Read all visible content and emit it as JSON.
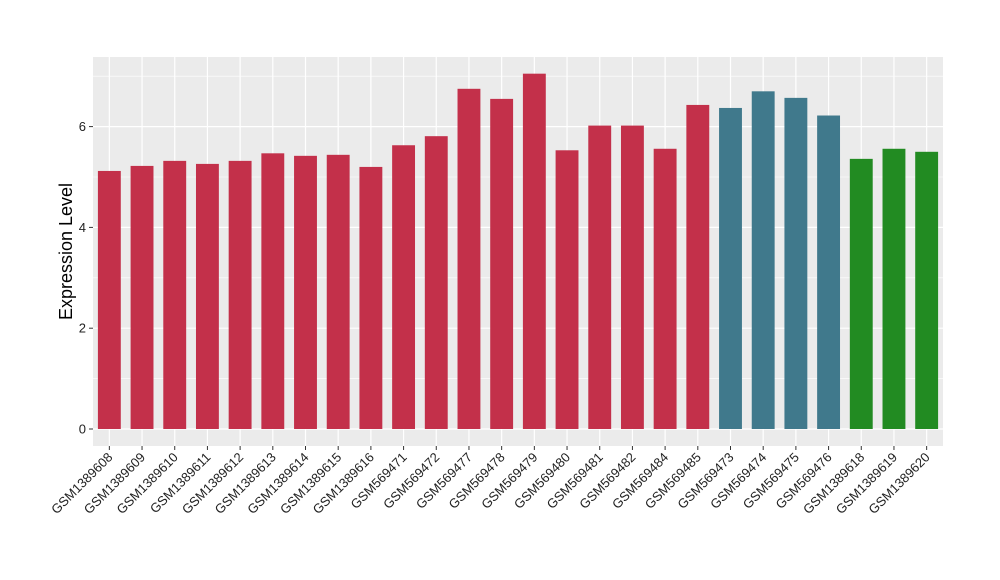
{
  "chart_data": {
    "type": "bar",
    "title": "",
    "xlabel": "",
    "ylabel": "Expression Level",
    "ylim": [
      0,
      7.3
    ],
    "yticks": [
      0,
      2,
      4,
      6
    ],
    "grid": true,
    "categories": [
      "GSM1389608",
      "GSM1389609",
      "GSM1389610",
      "GSM1389611",
      "GSM1389612",
      "GSM1389613",
      "GSM1389614",
      "GSM1389615",
      "GSM1389616",
      "GSM569471",
      "GSM569472",
      "GSM569477",
      "GSM569478",
      "GSM569479",
      "GSM569480",
      "GSM569481",
      "GSM569482",
      "GSM569484",
      "GSM569485",
      "GSM569473",
      "GSM569474",
      "GSM569475",
      "GSM569476",
      "GSM1389618",
      "GSM1389619",
      "GSM1389620"
    ],
    "values": [
      5.12,
      5.22,
      5.32,
      5.26,
      5.32,
      5.47,
      5.42,
      5.44,
      5.2,
      5.63,
      5.81,
      6.75,
      6.55,
      7.05,
      5.53,
      6.02,
      6.02,
      5.56,
      6.43,
      6.37,
      6.7,
      6.57,
      6.22,
      5.36,
      5.56,
      5.5
    ],
    "bar_colors": [
      "#c3304a",
      "#c3304a",
      "#c3304a",
      "#c3304a",
      "#c3304a",
      "#c3304a",
      "#c3304a",
      "#c3304a",
      "#c3304a",
      "#c3304a",
      "#c3304a",
      "#c3304a",
      "#c3304a",
      "#c3304a",
      "#c3304a",
      "#c3304a",
      "#c3304a",
      "#c3304a",
      "#c3304a",
      "#40798c",
      "#40798c",
      "#40798c",
      "#40798c",
      "#228b22",
      "#228b22",
      "#228b22"
    ],
    "panel_background": "#ebebeb",
    "grid_color": "#ffffff"
  }
}
